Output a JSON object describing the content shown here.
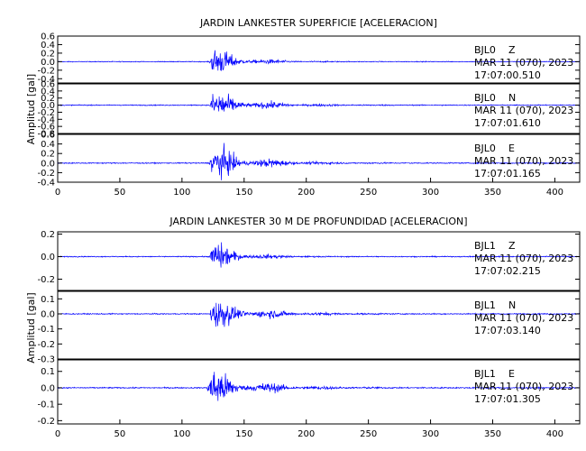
{
  "chart_data": [
    {
      "type": "line",
      "title": "JARDIN LANKESTER SUPERFICIE [ACELERACION]",
      "ylabel": "Amplitud [gal]",
      "xlabel": "",
      "xlim": [
        0,
        420
      ],
      "x_ticks": [
        "0",
        "50",
        "100",
        "150",
        "200",
        "250",
        "300",
        "350",
        "400"
      ],
      "line_color": "#0000ff",
      "grid": false,
      "panels": [
        {
          "station": "BJL0",
          "component": "Z",
          "date": "MAR 11 (070), 2023",
          "time": "17:07:00.510",
          "ylim": [
            -0.5,
            0.6
          ],
          "y_ticks": [
            "0.6",
            "0.4",
            "0.2",
            "0.0",
            "-0.2",
            "-0.4"
          ],
          "noise": 0.01,
          "onset": 122,
          "peak": 0.5,
          "decay": 22
        },
        {
          "station": "BJL0",
          "component": "N",
          "date": "MAR 11 (070), 2023",
          "time": "17:07:01.610",
          "ylim": [
            -0.8,
            0.6
          ],
          "y_ticks": [
            "0.6",
            "0.4",
            "0.2",
            "0.0",
            "-0.2",
            "-0.4",
            "-0.6",
            "-0.8"
          ],
          "noise": 0.015,
          "onset": 122,
          "peak": 0.55,
          "decay": 30
        },
        {
          "station": "BJL0",
          "component": "E",
          "date": "MAR 11 (070), 2023",
          "time": "17:07:01.165",
          "ylim": [
            -0.4,
            0.6
          ],
          "y_ticks": [
            "0.6",
            "0.4",
            "0.2",
            "0.0",
            "-0.2",
            "-0.4"
          ],
          "noise": 0.012,
          "onset": 122,
          "peak": 0.5,
          "decay": 30
        }
      ]
    },
    {
      "type": "line",
      "title": "JARDIN LANKESTER 30 M DE PROFUNDIDAD [ACELERACION]",
      "ylabel": "Amplitud [gal]",
      "xlabel": "",
      "xlim": [
        0,
        420
      ],
      "x_ticks": [
        "0",
        "50",
        "100",
        "150",
        "200",
        "250",
        "300",
        "350",
        "400"
      ],
      "line_color": "#0000ff",
      "grid": false,
      "panels": [
        {
          "station": "BJL1",
          "component": "Z",
          "date": "MAR 11 (070), 2023",
          "time": "17:07:02.215",
          "ylim": [
            -0.3,
            0.22
          ],
          "y_ticks": [
            "0.2",
            "0.0",
            "-0.2"
          ],
          "noise": 0.005,
          "onset": 122,
          "peak": 0.2,
          "decay": 20
        },
        {
          "station": "BJL1",
          "component": "N",
          "date": "MAR 11 (070), 2023",
          "time": "17:07:03.140",
          "ylim": [
            -0.3,
            0.15
          ],
          "y_ticks": [
            "0.1",
            "0.0",
            "-0.1",
            "-0.2",
            "-0.3"
          ],
          "noise": 0.004,
          "onset": 122,
          "peak": 0.14,
          "decay": 32
        },
        {
          "station": "BJL1",
          "component": "E",
          "date": "MAR 11 (070), 2023",
          "time": "17:07:01.305",
          "ylim": [
            -0.22,
            0.17
          ],
          "y_ticks": [
            "0.1",
            "0.0",
            "-0.1",
            "-0.2"
          ],
          "noise": 0.004,
          "onset": 120,
          "peak": 0.16,
          "decay": 32
        }
      ]
    }
  ]
}
